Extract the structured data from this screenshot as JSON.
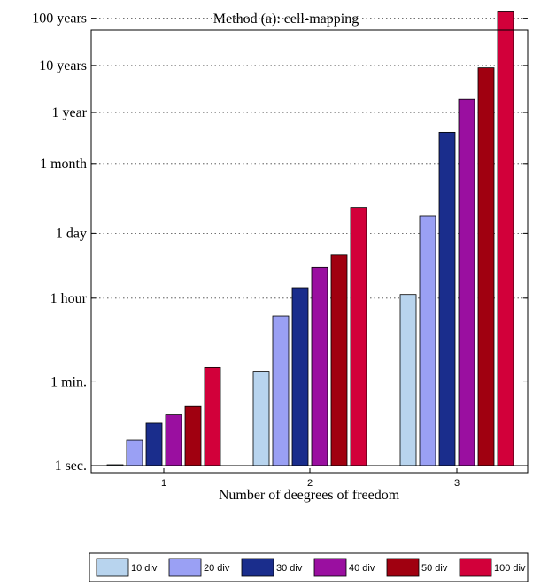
{
  "chart_data": {
    "type": "bar",
    "title": "Method (a): cell-mapping",
    "xlabel": "Number of deegrees of freedom",
    "ylabel": "",
    "y_scale": "log",
    "y_unit": "seconds",
    "ylim": [
      0.8,
      5000000000
    ],
    "grid": "y-dotted",
    "legend_position": "bottom",
    "categories": [
      "1",
      "2",
      "3"
    ],
    "y_ticks": [
      {
        "label": "1 sec.",
        "value": 1
      },
      {
        "label": "1 min.",
        "value": 60
      },
      {
        "label": "1 hour",
        "value": 3600
      },
      {
        "label": "1 day",
        "value": 86400
      },
      {
        "label": "1 month",
        "value": 2592000
      },
      {
        "label": "1 year",
        "value": 31536000
      },
      {
        "label": "10 years",
        "value": 315360000
      },
      {
        "label": "100 years",
        "value": 3153600000
      }
    ],
    "series": [
      {
        "name": "10 div",
        "color": "#b8d4ee",
        "values": [
          0.9,
          100,
          4300
        ]
      },
      {
        "name": "20 div",
        "color": "#9aa0f4",
        "values": [
          3.5,
          1500,
          200000
        ]
      },
      {
        "name": "30 div",
        "color": "#1a2d8c",
        "values": [
          8,
          6000,
          12000000
        ]
      },
      {
        "name": "40 div",
        "color": "#9a0fa0",
        "values": [
          12,
          16000,
          60000000
        ]
      },
      {
        "name": "50 div",
        "color": "#a00010",
        "values": [
          18,
          30000,
          280000000
        ]
      },
      {
        "name": "100 div",
        "color": "#d2003a",
        "values": [
          120,
          300000,
          4500000000
        ]
      }
    ]
  }
}
